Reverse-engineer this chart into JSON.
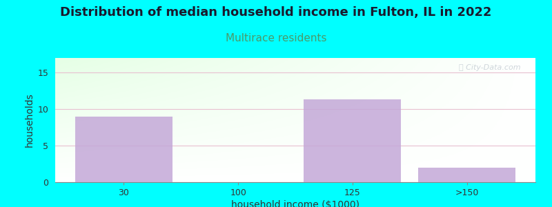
{
  "title": "Distribution of median household income in Fulton, IL in 2022",
  "subtitle": "Multirace residents",
  "xlabel": "household income ($1000)",
  "ylabel": "households",
  "categories": [
    "30",
    "100",
    "125",
    ">150"
  ],
  "values": [
    9,
    0,
    11.3,
    2
  ],
  "bar_color": "#c4a8d8",
  "bar_positions": [
    0,
    1,
    2,
    3
  ],
  "ylim": [
    0,
    17
  ],
  "yticks": [
    0,
    5,
    10,
    15
  ],
  "bg_color": "#00ffff",
  "title_fontsize": 13,
  "subtitle_fontsize": 11,
  "subtitle_color": "#4a9a6a",
  "watermark": "Ⓜ City-Data.com",
  "bar_width": 0.85,
  "grid_color": "#e8c0d0",
  "axis_label_fontsize": 10,
  "tick_fontsize": 9
}
